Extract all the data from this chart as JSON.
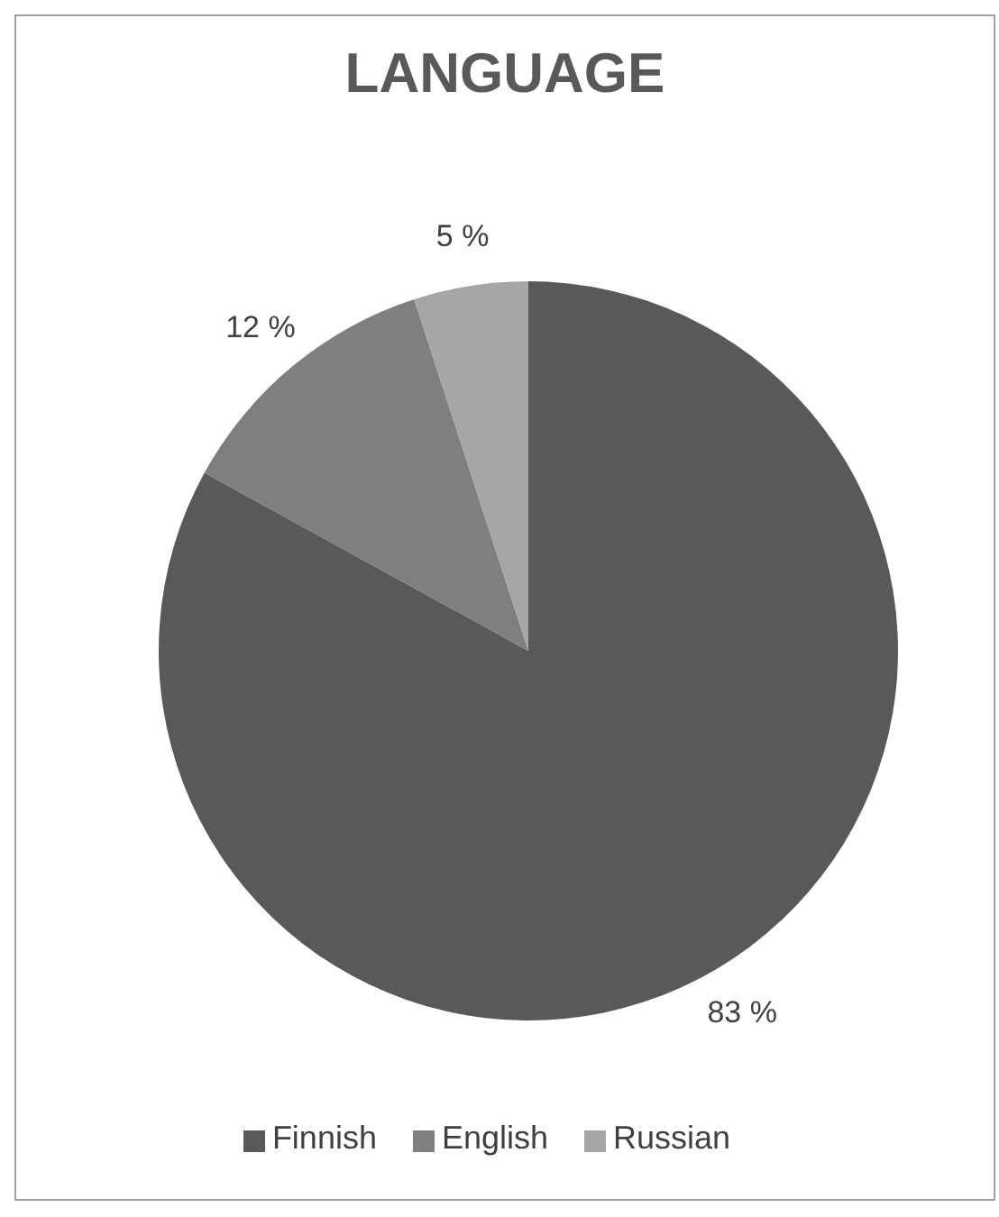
{
  "chart_data": {
    "type": "pie",
    "title": "LANGUAGE",
    "categories": [
      "Finnish",
      "English",
      "Russian"
    ],
    "values": [
      83,
      12,
      5
    ],
    "value_labels": [
      "83 %",
      "12 %",
      "5 %"
    ],
    "colors": [
      "#595959",
      "#7f7f7f",
      "#a6a6a6"
    ],
    "legend": "bottom"
  }
}
